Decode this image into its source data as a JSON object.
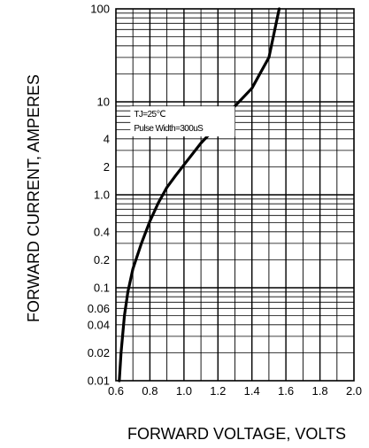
{
  "chart_data": {
    "type": "line",
    "xlabel": "FORWARD VOLTAGE, VOLTS",
    "ylabel": "FORWARD CURRENT, AMPERES",
    "x_scale": "linear",
    "y_scale": "log",
    "xlim": [
      0.6,
      2.0
    ],
    "ylim": [
      0.01,
      100
    ],
    "grid": true,
    "x_ticks": [
      "0.6",
      "0.8",
      "1.0",
      "1.2",
      "1.4",
      "1.6",
      "1.8",
      "2.0"
    ],
    "y_ticks": [
      {
        "value": 100,
        "label": "100"
      },
      {
        "value": 10,
        "label": "10"
      },
      {
        "value": 4,
        "label": "4"
      },
      {
        "value": 2,
        "label": "2"
      },
      {
        "value": 1,
        "label": "1.0"
      },
      {
        "value": 0.4,
        "label": "0.4"
      },
      {
        "value": 0.2,
        "label": "0.2"
      },
      {
        "value": 0.1,
        "label": "0.1"
      },
      {
        "value": 0.06,
        "label": "0.06"
      },
      {
        "value": 0.04,
        "label": "0.04"
      },
      {
        "value": 0.02,
        "label": "0.02"
      },
      {
        "value": 0.01,
        "label": "0.01"
      }
    ],
    "annotations": [
      "TJ=25℃",
      "Pulse Width=300uS"
    ],
    "series": [
      {
        "x": [
          0.62,
          0.63,
          0.65,
          0.67,
          0.7,
          0.75,
          0.8,
          0.85,
          0.9,
          0.95,
          1.0,
          1.1,
          1.2,
          1.3,
          1.4,
          1.5,
          1.56
        ],
        "y": [
          0.01,
          0.02,
          0.05,
          0.09,
          0.16,
          0.3,
          0.52,
          0.82,
          1.2,
          1.6,
          2.1,
          3.6,
          5.6,
          9.0,
          14,
          30,
          100
        ]
      }
    ]
  }
}
